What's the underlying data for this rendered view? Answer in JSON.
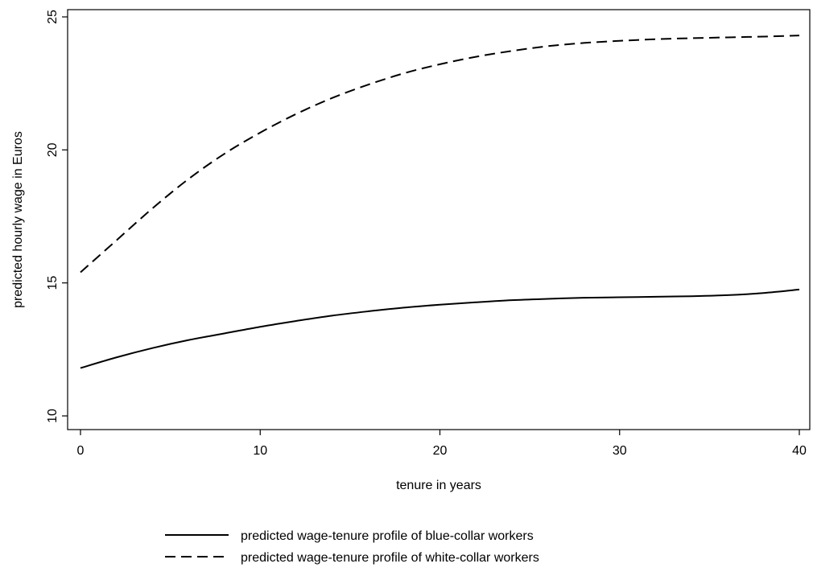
{
  "chart_data": {
    "type": "line",
    "xlabel": "tenure in years",
    "ylabel": "predicted hourly wage in Euros",
    "xlim": [
      0,
      40
    ],
    "ylim": [
      10,
      25
    ],
    "xticks": [
      0,
      10,
      20,
      30,
      40
    ],
    "yticks": [
      10,
      15,
      20,
      25
    ],
    "grid": false,
    "legend_position": "bottom",
    "series": [
      {
        "name": "predicted wage-tenure profile of blue-collar workers",
        "style": "solid",
        "color": "#000000",
        "x": [
          0,
          2,
          4,
          6,
          8,
          10,
          12,
          14,
          16,
          18,
          20,
          22,
          24,
          26,
          28,
          30,
          32,
          34,
          36,
          38,
          40
        ],
        "y": [
          11.8,
          12.2,
          12.55,
          12.85,
          13.1,
          13.35,
          13.57,
          13.77,
          13.93,
          14.07,
          14.18,
          14.27,
          14.35,
          14.4,
          14.44,
          14.46,
          14.48,
          14.5,
          14.54,
          14.62,
          14.75
        ]
      },
      {
        "name": "predicted wage-tenure profile of white-collar workers",
        "style": "dashed",
        "color": "#000000",
        "x": [
          0,
          2,
          4,
          6,
          8,
          10,
          12,
          14,
          16,
          18,
          20,
          22,
          24,
          26,
          28,
          30,
          32,
          34,
          36,
          38,
          40
        ],
        "y": [
          15.4,
          16.6,
          17.8,
          18.9,
          19.85,
          20.65,
          21.35,
          21.95,
          22.45,
          22.88,
          23.22,
          23.5,
          23.72,
          23.9,
          24.02,
          24.1,
          24.16,
          24.2,
          24.23,
          24.26,
          24.3
        ]
      }
    ]
  }
}
